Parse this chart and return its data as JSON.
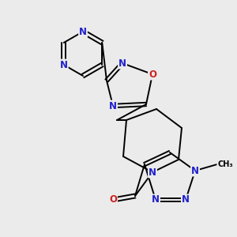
{
  "bg_color": "#ebebeb",
  "atom_colors": {
    "C": "#000000",
    "N": "#2020cc",
    "O": "#cc2020"
  },
  "bond_color": "#000000",
  "bond_width": 1.4,
  "font_size_atom": 8.5
}
